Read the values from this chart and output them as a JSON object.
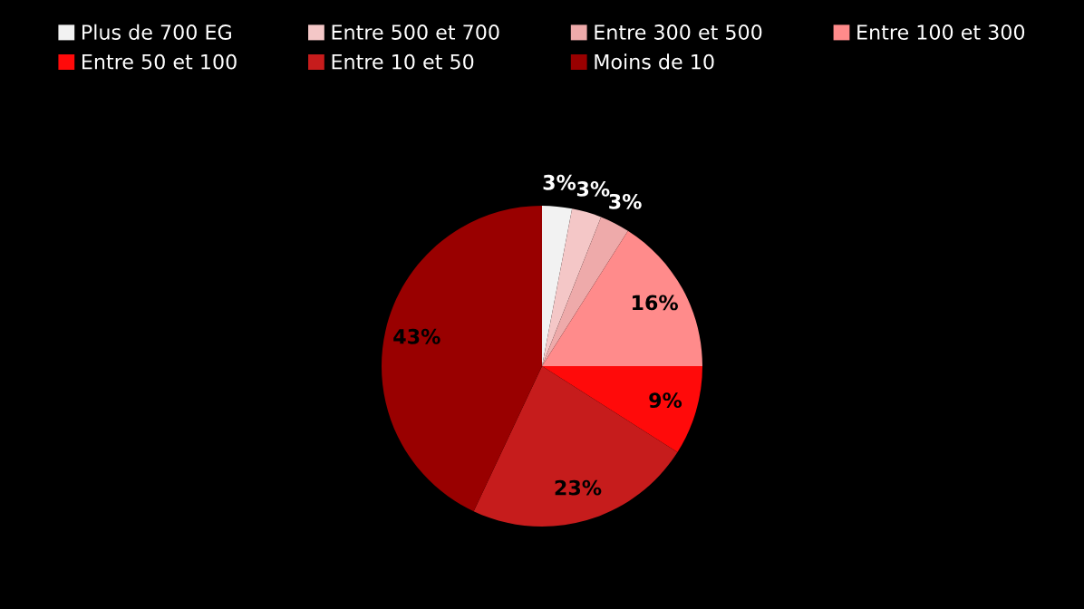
{
  "chart_data": {
    "type": "pie",
    "categories": [
      "Plus de 700 EG",
      "Entre 500 et 700",
      "Entre 300 et 500",
      "Entre 100 et 300",
      "Entre 50 et 100",
      "Entre 10 et 50",
      "Moins de 10"
    ],
    "values": [
      3,
      3,
      3,
      16,
      9,
      23,
      43
    ],
    "colors": [
      "#f2f2f2",
      "#f4c7c7",
      "#eeaaaa",
      "#ff8b8b",
      "#ff0a0a",
      "#c61c1c",
      "#990000"
    ],
    "value_labels": [
      "3%",
      "3%",
      "3%",
      "16%",
      "9%",
      "23%",
      "43%"
    ],
    "legend": "top"
  }
}
